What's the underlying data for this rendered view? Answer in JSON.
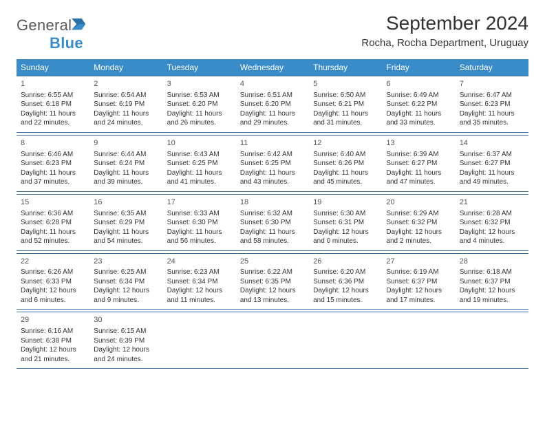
{
  "brand": {
    "text1": "General",
    "text2": "Blue"
  },
  "title": "September 2024",
  "location": "Rocha, Rocha Department, Uruguay",
  "colors": {
    "accent": "#3a8cc9",
    "border": "#3a6c9a",
    "text": "#333333",
    "logoGrey": "#58595b"
  },
  "day_headers": [
    "Sunday",
    "Monday",
    "Tuesday",
    "Wednesday",
    "Thursday",
    "Friday",
    "Saturday"
  ],
  "weeks": [
    [
      {
        "n": "1",
        "sr": "Sunrise: 6:55 AM",
        "ss": "Sunset: 6:18 PM",
        "d1": "Daylight: 11 hours",
        "d2": "and 22 minutes."
      },
      {
        "n": "2",
        "sr": "Sunrise: 6:54 AM",
        "ss": "Sunset: 6:19 PM",
        "d1": "Daylight: 11 hours",
        "d2": "and 24 minutes."
      },
      {
        "n": "3",
        "sr": "Sunrise: 6:53 AM",
        "ss": "Sunset: 6:20 PM",
        "d1": "Daylight: 11 hours",
        "d2": "and 26 minutes."
      },
      {
        "n": "4",
        "sr": "Sunrise: 6:51 AM",
        "ss": "Sunset: 6:20 PM",
        "d1": "Daylight: 11 hours",
        "d2": "and 29 minutes."
      },
      {
        "n": "5",
        "sr": "Sunrise: 6:50 AM",
        "ss": "Sunset: 6:21 PM",
        "d1": "Daylight: 11 hours",
        "d2": "and 31 minutes."
      },
      {
        "n": "6",
        "sr": "Sunrise: 6:49 AM",
        "ss": "Sunset: 6:22 PM",
        "d1": "Daylight: 11 hours",
        "d2": "and 33 minutes."
      },
      {
        "n": "7",
        "sr": "Sunrise: 6:47 AM",
        "ss": "Sunset: 6:23 PM",
        "d1": "Daylight: 11 hours",
        "d2": "and 35 minutes."
      }
    ],
    [
      {
        "n": "8",
        "sr": "Sunrise: 6:46 AM",
        "ss": "Sunset: 6:23 PM",
        "d1": "Daylight: 11 hours",
        "d2": "and 37 minutes."
      },
      {
        "n": "9",
        "sr": "Sunrise: 6:44 AM",
        "ss": "Sunset: 6:24 PM",
        "d1": "Daylight: 11 hours",
        "d2": "and 39 minutes."
      },
      {
        "n": "10",
        "sr": "Sunrise: 6:43 AM",
        "ss": "Sunset: 6:25 PM",
        "d1": "Daylight: 11 hours",
        "d2": "and 41 minutes."
      },
      {
        "n": "11",
        "sr": "Sunrise: 6:42 AM",
        "ss": "Sunset: 6:25 PM",
        "d1": "Daylight: 11 hours",
        "d2": "and 43 minutes."
      },
      {
        "n": "12",
        "sr": "Sunrise: 6:40 AM",
        "ss": "Sunset: 6:26 PM",
        "d1": "Daylight: 11 hours",
        "d2": "and 45 minutes."
      },
      {
        "n": "13",
        "sr": "Sunrise: 6:39 AM",
        "ss": "Sunset: 6:27 PM",
        "d1": "Daylight: 11 hours",
        "d2": "and 47 minutes."
      },
      {
        "n": "14",
        "sr": "Sunrise: 6:37 AM",
        "ss": "Sunset: 6:27 PM",
        "d1": "Daylight: 11 hours",
        "d2": "and 49 minutes."
      }
    ],
    [
      {
        "n": "15",
        "sr": "Sunrise: 6:36 AM",
        "ss": "Sunset: 6:28 PM",
        "d1": "Daylight: 11 hours",
        "d2": "and 52 minutes."
      },
      {
        "n": "16",
        "sr": "Sunrise: 6:35 AM",
        "ss": "Sunset: 6:29 PM",
        "d1": "Daylight: 11 hours",
        "d2": "and 54 minutes."
      },
      {
        "n": "17",
        "sr": "Sunrise: 6:33 AM",
        "ss": "Sunset: 6:30 PM",
        "d1": "Daylight: 11 hours",
        "d2": "and 56 minutes."
      },
      {
        "n": "18",
        "sr": "Sunrise: 6:32 AM",
        "ss": "Sunset: 6:30 PM",
        "d1": "Daylight: 11 hours",
        "d2": "and 58 minutes."
      },
      {
        "n": "19",
        "sr": "Sunrise: 6:30 AM",
        "ss": "Sunset: 6:31 PM",
        "d1": "Daylight: 12 hours",
        "d2": "and 0 minutes."
      },
      {
        "n": "20",
        "sr": "Sunrise: 6:29 AM",
        "ss": "Sunset: 6:32 PM",
        "d1": "Daylight: 12 hours",
        "d2": "and 2 minutes."
      },
      {
        "n": "21",
        "sr": "Sunrise: 6:28 AM",
        "ss": "Sunset: 6:32 PM",
        "d1": "Daylight: 12 hours",
        "d2": "and 4 minutes."
      }
    ],
    [
      {
        "n": "22",
        "sr": "Sunrise: 6:26 AM",
        "ss": "Sunset: 6:33 PM",
        "d1": "Daylight: 12 hours",
        "d2": "and 6 minutes."
      },
      {
        "n": "23",
        "sr": "Sunrise: 6:25 AM",
        "ss": "Sunset: 6:34 PM",
        "d1": "Daylight: 12 hours",
        "d2": "and 9 minutes."
      },
      {
        "n": "24",
        "sr": "Sunrise: 6:23 AM",
        "ss": "Sunset: 6:34 PM",
        "d1": "Daylight: 12 hours",
        "d2": "and 11 minutes."
      },
      {
        "n": "25",
        "sr": "Sunrise: 6:22 AM",
        "ss": "Sunset: 6:35 PM",
        "d1": "Daylight: 12 hours",
        "d2": "and 13 minutes."
      },
      {
        "n": "26",
        "sr": "Sunrise: 6:20 AM",
        "ss": "Sunset: 6:36 PM",
        "d1": "Daylight: 12 hours",
        "d2": "and 15 minutes."
      },
      {
        "n": "27",
        "sr": "Sunrise: 6:19 AM",
        "ss": "Sunset: 6:37 PM",
        "d1": "Daylight: 12 hours",
        "d2": "and 17 minutes."
      },
      {
        "n": "28",
        "sr": "Sunrise: 6:18 AM",
        "ss": "Sunset: 6:37 PM",
        "d1": "Daylight: 12 hours",
        "d2": "and 19 minutes."
      }
    ],
    [
      {
        "n": "29",
        "sr": "Sunrise: 6:16 AM",
        "ss": "Sunset: 6:38 PM",
        "d1": "Daylight: 12 hours",
        "d2": "and 21 minutes."
      },
      {
        "n": "30",
        "sr": "Sunrise: 6:15 AM",
        "ss": "Sunset: 6:39 PM",
        "d1": "Daylight: 12 hours",
        "d2": "and 24 minutes."
      },
      null,
      null,
      null,
      null,
      null
    ]
  ]
}
